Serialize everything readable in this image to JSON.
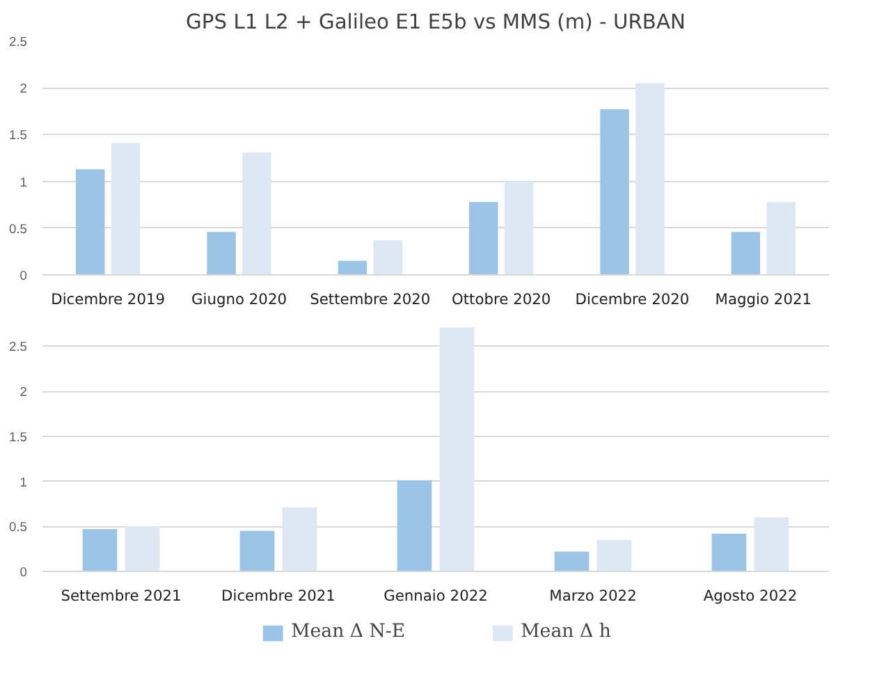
{
  "chart_data": [
    {
      "type": "bar",
      "title": "GPS L1 L2 + Galileo E1 E5b vs MMS (m) - URBAN",
      "categories": [
        "Dicembre 2019",
        "Giugno 2020",
        "Settembre 2020",
        "Ottobre 2020",
        "Dicembre 2020",
        "Maggio 2021"
      ],
      "ylim": [
        0,
        2.5
      ],
      "yticks": [
        0,
        0.5,
        1,
        1.5,
        2,
        2.5
      ],
      "grid": "y",
      "series": [
        {
          "color": "#9dc3e6",
          "values": [
            1.13,
            0.46,
            0.15,
            0.78,
            1.77,
            0.46
          ]
        },
        {
          "color": "#dde8f4",
          "values": [
            1.41,
            1.31,
            0.37,
            1.0,
            2.05,
            0.78
          ]
        }
      ]
    },
    {
      "type": "bar",
      "categories": [
        "Settembre 2021",
        "Dicembre 2021",
        "Gennaio 2022",
        "Marzo 2022",
        "Agosto 2022"
      ],
      "ylim": [
        0,
        2.75
      ],
      "yticks": [
        0,
        0.5,
        1,
        1.5,
        2,
        2.5
      ],
      "grid": "y",
      "legend": "bottom",
      "series": [
        {
          "name": "Mean Δ N-E",
          "color": "#9dc3e6",
          "values": [
            0.47,
            0.45,
            1.01,
            0.22,
            0.42
          ]
        },
        {
          "name": "Mean Δ h",
          "color": "#dde8f4",
          "values": [
            0.5,
            0.71,
            2.71,
            0.35,
            0.6
          ]
        }
      ]
    }
  ]
}
